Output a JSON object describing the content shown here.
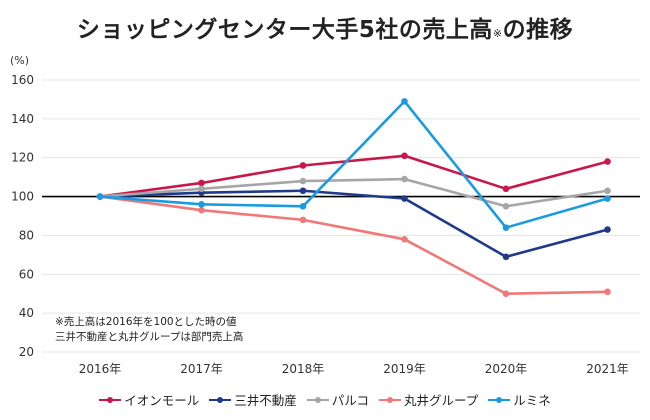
{
  "chart_data": {
    "type": "line",
    "title": "ショッピングセンター大手5社の売上高",
    "title_mark": "※",
    "title_suffix": "の推移",
    "ylabel": "(%)",
    "ylim": [
      20,
      160
    ],
    "yticks": [
      20,
      40,
      60,
      80,
      100,
      120,
      140,
      160
    ],
    "reference_line": 100,
    "categories": [
      "2016年",
      "2017年",
      "2018年",
      "2019年",
      "2020年",
      "2021年"
    ],
    "series": [
      {
        "name": "イオンモール",
        "color": "#c8184a",
        "values": [
          100,
          107,
          116,
          121,
          104,
          118
        ]
      },
      {
        "name": "三井不動産",
        "color": "#1f3a8a",
        "values": [
          100,
          102,
          103,
          99,
          69,
          83
        ]
      },
      {
        "name": "パルコ",
        "color": "#a6a6a6",
        "values": [
          100,
          104,
          108,
          109,
          95,
          103
        ]
      },
      {
        "name": "丸井グループ",
        "color": "#f07878",
        "values": [
          100,
          93,
          88,
          78,
          50,
          51
        ]
      },
      {
        "name": "ルミネ",
        "color": "#1a9be0",
        "values": [
          100,
          96,
          95,
          149,
          84,
          99
        ]
      }
    ],
    "annotations": [
      "※売上高は2016年を100とした時の値",
      "三井不動産と丸井グループは部門売上高"
    ],
    "legend_position": "bottom"
  }
}
